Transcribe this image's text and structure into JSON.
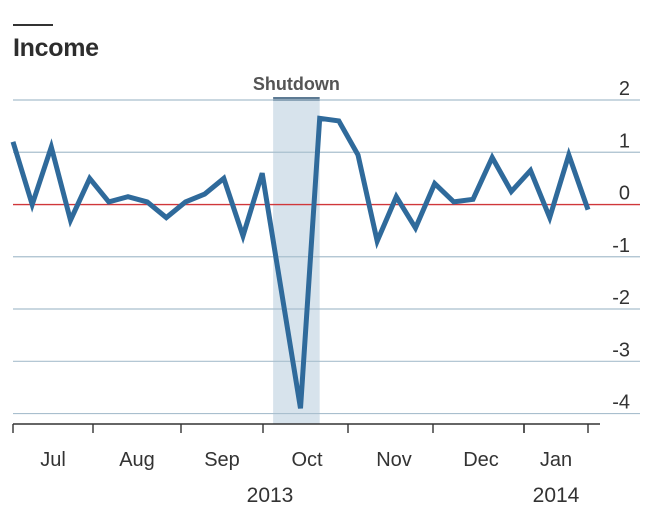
{
  "chart_data": {
    "type": "line",
    "title": "Income",
    "xlabel": "",
    "ylabel": "",
    "ylim": [
      -4.2,
      2
    ],
    "y_ticks": [
      2,
      1,
      0,
      -1,
      -2,
      -3,
      -4
    ],
    "y_tick_labels": [
      "2",
      "1",
      "0",
      "-1",
      "-2",
      "-3",
      "-4"
    ],
    "x_ticks": [
      "Jul",
      "Aug",
      "Sep",
      "Oct",
      "Nov",
      "Dec",
      "Jan"
    ],
    "years": [
      "2013",
      "2014"
    ],
    "grid": true,
    "zero_line_color": "#d0373a",
    "series": [
      {
        "color": "#2f6a9b",
        "points": [
          {
            "x": "2013-06-17",
            "y": 1.2
          },
          {
            "x": "2013-06-24",
            "y": 0.0
          },
          {
            "x": "2013-07-01",
            "y": 1.1
          },
          {
            "x": "2013-07-08",
            "y": -0.3
          },
          {
            "x": "2013-07-15",
            "y": 0.5
          },
          {
            "x": "2013-07-22",
            "y": 0.05
          },
          {
            "x": "2013-07-29",
            "y": 0.15
          },
          {
            "x": "2013-08-05",
            "y": 0.05
          },
          {
            "x": "2013-08-12",
            "y": -0.25
          },
          {
            "x": "2013-08-19",
            "y": 0.05
          },
          {
            "x": "2013-08-26",
            "y": 0.2
          },
          {
            "x": "2013-09-02",
            "y": 0.5
          },
          {
            "x": "2013-09-09",
            "y": -0.6
          },
          {
            "x": "2013-09-16",
            "y": 0.6
          },
          {
            "x": "2013-09-30",
            "y": -3.9
          },
          {
            "x": "2013-10-07",
            "y": 1.65
          },
          {
            "x": "2013-10-14",
            "y": 1.6
          },
          {
            "x": "2013-10-21",
            "y": 0.95
          },
          {
            "x": "2013-10-28",
            "y": -0.7
          },
          {
            "x": "2013-11-04",
            "y": 0.15
          },
          {
            "x": "2013-11-11",
            "y": -0.45
          },
          {
            "x": "2013-11-18",
            "y": 0.4
          },
          {
            "x": "2013-11-25",
            "y": 0.05
          },
          {
            "x": "2013-12-02",
            "y": 0.1
          },
          {
            "x": "2013-12-09",
            "y": 0.9
          },
          {
            "x": "2013-12-16",
            "y": 0.25
          },
          {
            "x": "2013-12-23",
            "y": 0.65
          },
          {
            "x": "2013-12-30",
            "y": -0.25
          },
          {
            "x": "2014-01-06",
            "y": 0.95
          },
          {
            "x": "2014-01-13",
            "y": -0.1
          }
        ]
      }
    ],
    "annotations": [
      {
        "label": "Shutdown",
        "start": "2013-09-20",
        "end": "2013-10-07",
        "color": "#d7e3ec"
      }
    ]
  }
}
